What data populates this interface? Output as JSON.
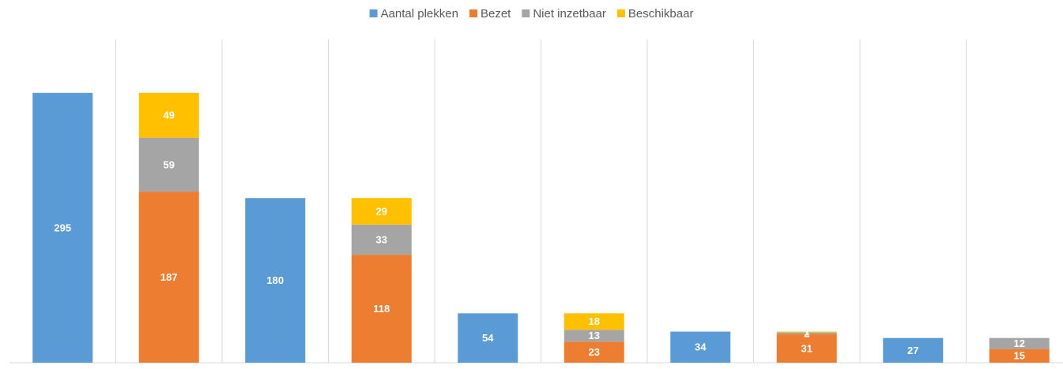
{
  "chart_data": {
    "type": "stacked_bar",
    "categories": [
      null,
      null,
      null,
      null,
      null,
      null,
      null,
      null,
      null,
      null
    ],
    "series": [
      {
        "name": "Aantal plekken",
        "color": "#5b9bd5",
        "values": [
          295,
          null,
          180,
          null,
          54,
          null,
          34,
          null,
          27,
          null
        ]
      },
      {
        "name": "Bezet",
        "color": "#ed7d31",
        "values": [
          null,
          187,
          null,
          118,
          null,
          23,
          null,
          31,
          null,
          15
        ]
      },
      {
        "name": "Niet inzetbaar",
        "color": "#a5a5a5",
        "values": [
          null,
          59,
          null,
          33,
          null,
          13,
          null,
          2,
          null,
          12
        ]
      },
      {
        "name": "Beschikbaar",
        "color": "#ffc000",
        "values": [
          null,
          49,
          null,
          29,
          null,
          18,
          null,
          1,
          null,
          null
        ]
      }
    ],
    "ylim": [
      0,
      350
    ],
    "legend": "top"
  }
}
